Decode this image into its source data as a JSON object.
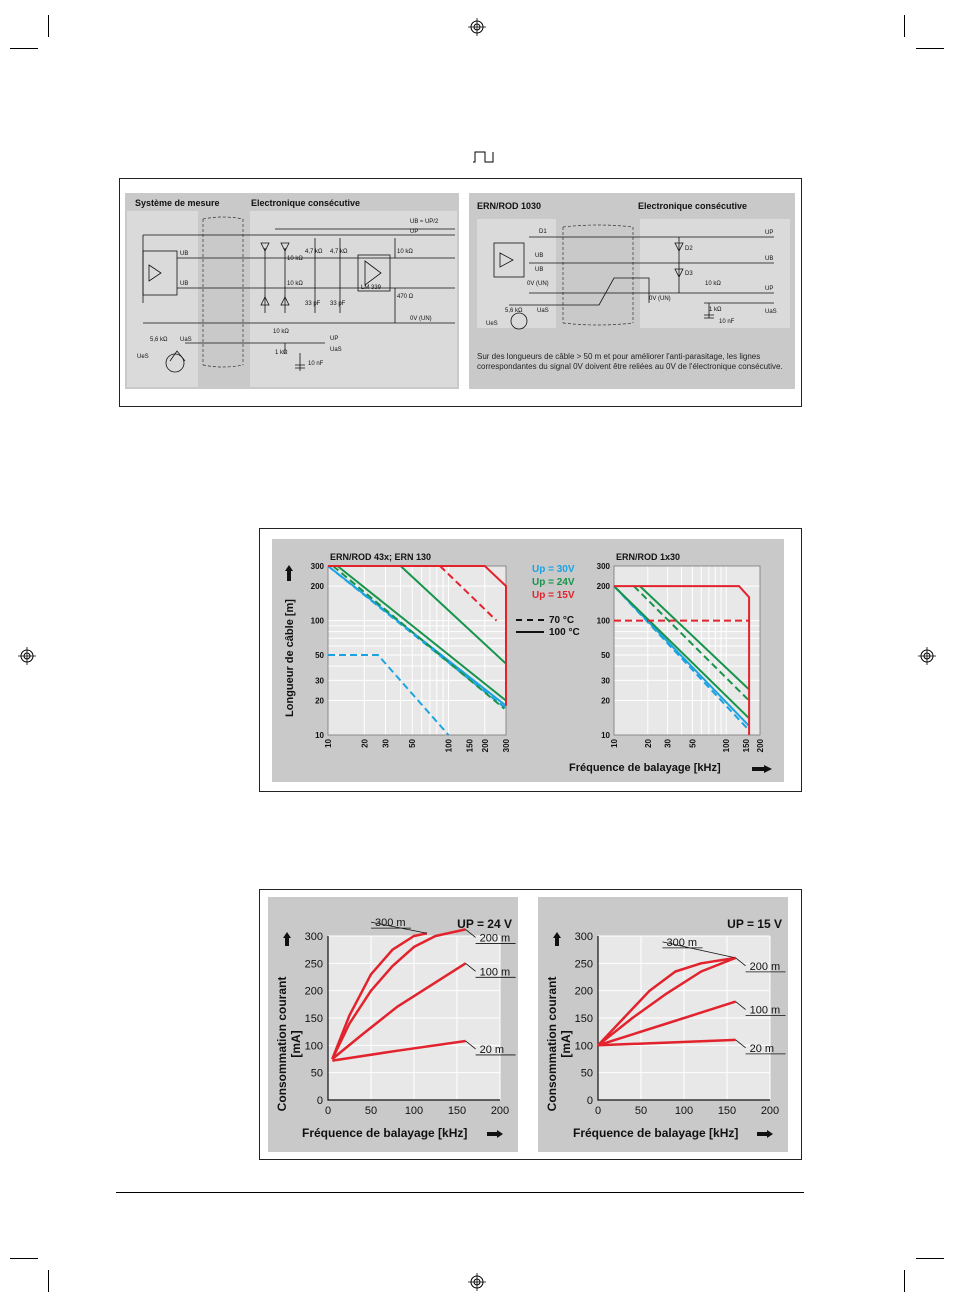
{
  "pulse_symbol": "pulse-icon",
  "circuit1": {
    "title_left": "Système de mesure",
    "title_right": "Electronique consécutive",
    "labels": [
      "UB",
      "UB",
      "UB ≈ UP/2",
      "UP",
      "10 kΩ",
      "10 kΩ",
      "4,7 kΩ",
      "4,7 kΩ",
      "33 pF",
      "33 pF",
      "10 kΩ",
      "470 Ω",
      "LM 339",
      "0V (UN)",
      "5,6 kΩ",
      "UaS",
      "UeS",
      "10 kΩ",
      "1 kΩ",
      "UP",
      "UaS",
      "10 nF"
    ]
  },
  "circuit2": {
    "title_left": "ERN/ROD 1030",
    "title_right": "Electronique consécutive",
    "labels": [
      "D1",
      "D2",
      "D3",
      "UB",
      "UB",
      "0V (UN)",
      "5,6 kΩ",
      "UaS",
      "UeS",
      "UP",
      "UB",
      "UP",
      "0V (UN)",
      "10 kΩ",
      "1 kΩ",
      "UaS",
      "10 nF"
    ],
    "note": "Sur des longueurs de câble > 50 m et pour améliorer l'anti-parasitage, les lignes correspondantes du signal 0V doivent être reliées au 0V de l'électronique consécutive."
  },
  "cable_figure": {
    "ylabel": "Longueur de câble [m]",
    "xlabel": "Fréquence de balayage [kHz]",
    "legend": [
      {
        "label": "Up = 30V",
        "color": "#1aa3e0"
      },
      {
        "label": "Up = 24V",
        "color": "#17944a"
      },
      {
        "label": "Up = 15V",
        "color": "#e2222c"
      }
    ],
    "style_legend": [
      {
        "label": "70 °C",
        "style": "dashed"
      },
      {
        "label": "100 °C",
        "style": "solid"
      }
    ]
  },
  "current_figure": {
    "ylabel": "Consommation courant [mA]",
    "xlabel": "Fréquence de balayage [kHz]"
  },
  "chart_data": [
    {
      "type": "line",
      "title": "ERN/ROD 43x; ERN 130",
      "xscale": "log",
      "yscale": "log",
      "xlim": [
        10,
        300
      ],
      "ylim": [
        10,
        300
      ],
      "xticks": [
        10,
        20,
        30,
        50,
        100,
        150,
        200,
        300
      ],
      "yticks": [
        10,
        20,
        30,
        50,
        100,
        200,
        300
      ],
      "series": [
        {
          "name": "Up = 30V, 100 °C",
          "color": "#1aa3e0",
          "style": "solid",
          "x": [
            10,
            300
          ],
          "y": [
            300,
            18
          ]
        },
        {
          "name": "Up = 30V, 70 °C",
          "color": "#1aa3e0",
          "style": "dashed",
          "x": [
            10,
            300
          ],
          "y": [
            300,
            17
          ]
        },
        {
          "name": "Up = 30V",
          "color": "#1aa3e0",
          "style": "dashed",
          "x": [
            10,
            26,
            100
          ],
          "y": [
            50,
            50,
            10
          ]
        },
        {
          "name": "Up = 24V, 100 °C",
          "color": "#17944a",
          "style": "solid",
          "x": [
            12,
            300
          ],
          "y": [
            300,
            20
          ]
        },
        {
          "name": "Up = 24V, 70 °C",
          "color": "#17944a",
          "style": "dashed",
          "x": [
            11,
            290
          ],
          "y": [
            300,
            17
          ]
        },
        {
          "name": "Up = 24V",
          "color": "#17944a",
          "style": "solid",
          "x": [
            40,
            300
          ],
          "y": [
            300,
            42
          ]
        },
        {
          "name": "Up = 15V, 100 °C",
          "color": "#e2222c",
          "style": "solid",
          "x": [
            10,
            200,
            300,
            300
          ],
          "y": [
            300,
            300,
            200,
            18
          ]
        },
        {
          "name": "Up = 15V, 70 °C",
          "color": "#e2222c",
          "style": "dashed",
          "x": [
            85,
            250
          ],
          "y": [
            300,
            100
          ]
        }
      ]
    },
    {
      "type": "line",
      "title": "ERN/ROD 1x30",
      "xscale": "log",
      "yscale": "log",
      "xlim": [
        10,
        200
      ],
      "ylim": [
        10,
        300
      ],
      "xticks": [
        10,
        20,
        30,
        50,
        100,
        150,
        200
      ],
      "yticks": [
        10,
        20,
        30,
        50,
        100,
        200,
        300
      ],
      "series": [
        {
          "name": "Up = 30V, 100 °C",
          "color": "#1aa3e0",
          "style": "solid",
          "x": [
            10,
            160
          ],
          "y": [
            200,
            12
          ]
        },
        {
          "name": "Up = 30V, 70 °C",
          "color": "#1aa3e0",
          "style": "dashed",
          "x": [
            10,
            160
          ],
          "y": [
            200,
            11
          ]
        },
        {
          "name": "Up = 24V, 100 °C",
          "color": "#17944a",
          "style": "solid",
          "x": [
            17,
            160
          ],
          "y": [
            200,
            25
          ]
        },
        {
          "name": "Up = 24V, 70 °C",
          "color": "#17944a",
          "style": "dashed",
          "x": [
            15,
            160
          ],
          "y": [
            200,
            20
          ]
        },
        {
          "name": "Up = 24V",
          "color": "#17944a",
          "style": "solid",
          "x": [
            10,
            160
          ],
          "y": [
            200,
            14
          ]
        },
        {
          "name": "Up = 15V, 100 °C",
          "color": "#e2222c",
          "style": "solid",
          "x": [
            10,
            130,
            160,
            160
          ],
          "y": [
            200,
            200,
            160,
            10
          ]
        },
        {
          "name": "Up = 15V, 70 °C",
          "color": "#e2222c",
          "style": "dashed",
          "x": [
            10,
            160
          ],
          "y": [
            100,
            100
          ]
        }
      ]
    },
    {
      "type": "line",
      "title": "UP = 24 V",
      "xlabel": "Fréquence de balayage [kHz]",
      "ylabel": "Consommation courant [mA]",
      "xlim": [
        0,
        200
      ],
      "ylim": [
        0,
        300
      ],
      "xticks": [
        0,
        50,
        100,
        150,
        200
      ],
      "yticks": [
        0,
        50,
        100,
        150,
        200,
        250,
        300
      ],
      "series": [
        {
          "name": "300 m",
          "x": [
            5,
            25,
            50,
            75,
            100,
            115
          ],
          "y": [
            75,
            155,
            230,
            275,
            300,
            305
          ]
        },
        {
          "name": "200 m",
          "x": [
            5,
            25,
            50,
            75,
            100,
            125,
            160
          ],
          "y": [
            75,
            140,
            200,
            245,
            280,
            300,
            312
          ]
        },
        {
          "name": "100 m",
          "x": [
            5,
            40,
            80,
            120,
            160
          ],
          "y": [
            75,
            120,
            170,
            210,
            250
          ]
        },
        {
          "name": "20 m",
          "x": [
            5,
            80,
            160
          ],
          "y": [
            72,
            90,
            108
          ]
        }
      ]
    },
    {
      "type": "line",
      "title": "UP = 15 V",
      "xlabel": "Fréquence de balayage [kHz]",
      "ylabel": "Consommation courant [mA]",
      "xlim": [
        0,
        200
      ],
      "ylim": [
        0,
        300
      ],
      "xticks": [
        0,
        50,
        100,
        150,
        200
      ],
      "yticks": [
        0,
        50,
        100,
        150,
        200,
        250,
        300
      ],
      "series": [
        {
          "name": "300 m",
          "x": [
            0,
            30,
            60,
            90,
            120,
            160
          ],
          "y": [
            100,
            150,
            200,
            235,
            250,
            260
          ]
        },
        {
          "name": "200 m",
          "x": [
            0,
            40,
            80,
            120,
            160
          ],
          "y": [
            100,
            150,
            195,
            235,
            260
          ]
        },
        {
          "name": "100 m",
          "x": [
            0,
            80,
            160
          ],
          "y": [
            100,
            140,
            180
          ]
        },
        {
          "name": "20 m",
          "x": [
            0,
            80,
            160
          ],
          "y": [
            100,
            105,
            110
          ]
        }
      ]
    }
  ]
}
